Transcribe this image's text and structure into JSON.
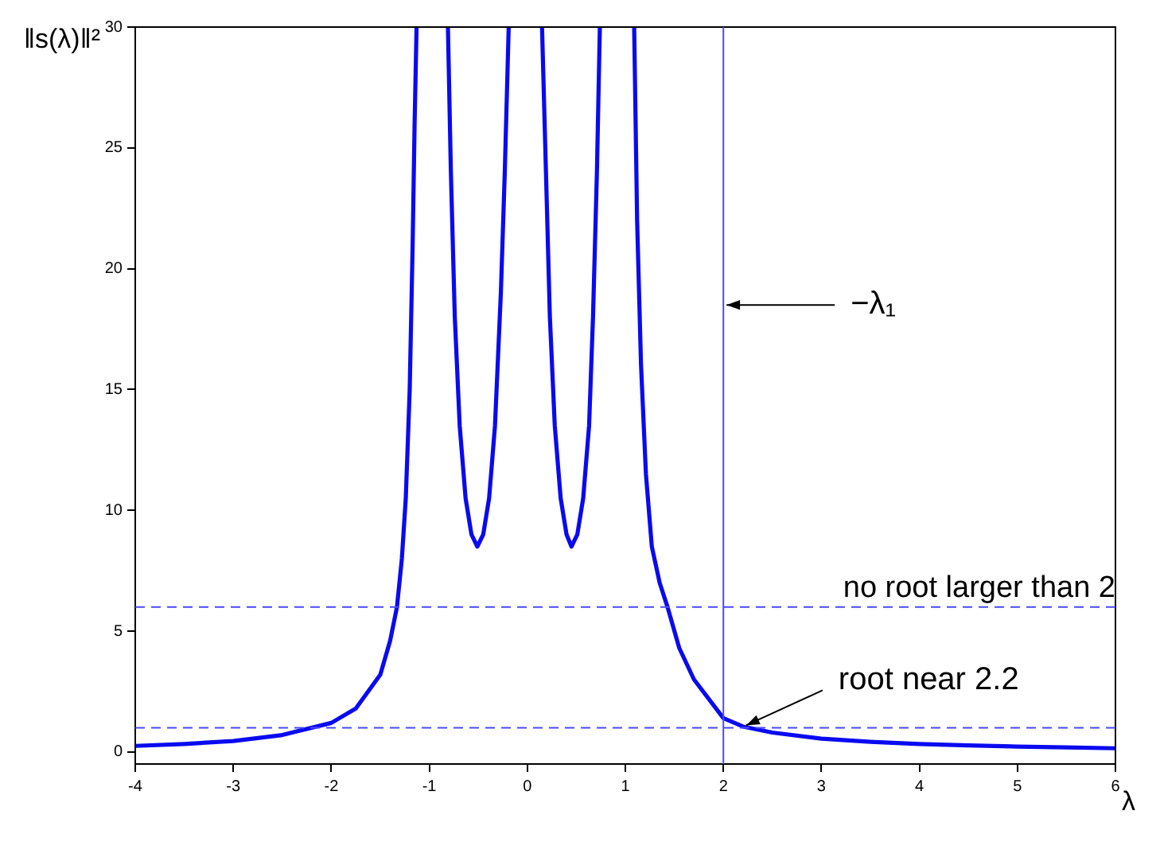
{
  "chart_data": {
    "type": "line",
    "xlabel": "λ",
    "ylabel": "‖s(λ)‖²",
    "xlim": [
      -4,
      6
    ],
    "ylim": [
      -0.5,
      30
    ],
    "xticks": [
      -4,
      -3,
      -2,
      -1,
      0,
      1,
      2,
      3,
      4,
      5,
      6
    ],
    "yticks": [
      0,
      5,
      10,
      15,
      20,
      25,
      30
    ],
    "grid": false,
    "legend": false,
    "marker": "none",
    "line_style": "solid",
    "series": [
      {
        "color": "#0a0af0",
        "x": [
          -4,
          -3.5,
          -3,
          -2.5,
          -2,
          -1.75,
          -1.5,
          -1.4,
          -1.33,
          -1.28,
          -1.24,
          -1.2,
          -1.17,
          -1.15,
          -1.13,
          null,
          -0.81,
          -0.78,
          -0.74,
          -0.69,
          -0.63,
          -0.57,
          -0.51,
          -0.45,
          -0.39,
          -0.33,
          -0.27,
          -0.23,
          -0.19,
          null,
          0.15,
          0.19,
          0.23,
          0.28,
          0.34,
          0.4,
          0.45,
          0.51,
          0.57,
          0.63,
          0.67,
          0.71,
          0.74,
          null,
          1.09,
          1.12,
          1.16,
          1.21,
          1.27,
          1.35,
          1.43,
          1.55,
          1.7,
          2,
          2.2,
          2.5,
          3,
          3.5,
          4,
          4.5,
          5,
          5.5,
          6
        ],
        "values": [
          0.25,
          0.33,
          0.45,
          0.7,
          1.2,
          1.8,
          3.2,
          4.6,
          6,
          8,
          10.5,
          15,
          21,
          26,
          30,
          null,
          30,
          24,
          18,
          13.5,
          10.5,
          9,
          8.5,
          9,
          10.5,
          13.5,
          19,
          24,
          30,
          null,
          30,
          24,
          18,
          13.5,
          10.5,
          9,
          8.5,
          9,
          10.5,
          13.5,
          18,
          24,
          30,
          null,
          30,
          22,
          16,
          11.5,
          8.5,
          7,
          6,
          4.3,
          3,
          1.4,
          1.05,
          0.8,
          0.55,
          0.42,
          0.33,
          0.27,
          0.22,
          0.19,
          0.15
        ]
      }
    ],
    "ref_lines": [
      {
        "axis": "y",
        "value": 6,
        "label": "no root larger than 2",
        "color": "#4a4aff",
        "line_style": "dashed"
      },
      {
        "axis": "y",
        "value": 1,
        "label": null,
        "color": "#4a4aff",
        "line_style": "dashed"
      },
      {
        "axis": "x",
        "value": 2,
        "label": null,
        "color": "#4a4aff",
        "line_style": "solid"
      }
    ],
    "annotations": [
      {
        "text": "−λ₁",
        "x": 2,
        "y": 18.5
      },
      {
        "text": "root near 2.2",
        "x": 2.2,
        "y": 1.1
      }
    ]
  }
}
